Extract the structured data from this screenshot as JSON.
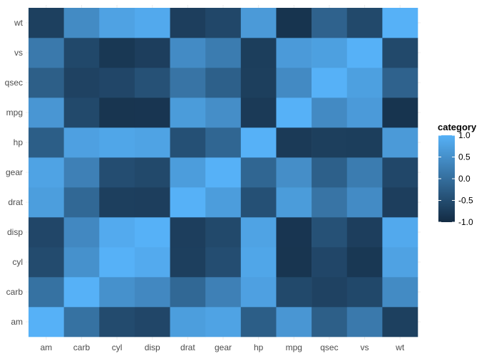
{
  "chart_data": {
    "type": "heatmap",
    "x_categories": [
      "am",
      "carb",
      "cyl",
      "disp",
      "drat",
      "gear",
      "hp",
      "mpg",
      "qsec",
      "vs",
      "wt"
    ],
    "y_categories": [
      "am",
      "carb",
      "cyl",
      "disp",
      "drat",
      "gear",
      "hp",
      "mpg",
      "qsec",
      "vs",
      "wt"
    ],
    "values": [
      [
        1.0,
        0.058,
        -0.523,
        -0.591,
        0.713,
        0.794,
        -0.243,
        0.6,
        -0.23,
        0.168,
        -0.692
      ],
      [
        0.058,
        1.0,
        0.527,
        0.395,
        -0.091,
        0.274,
        0.75,
        -0.551,
        -0.656,
        -0.57,
        0.428
      ],
      [
        -0.523,
        0.527,
        1.0,
        0.902,
        -0.7,
        -0.493,
        0.832,
        -0.852,
        -0.591,
        -0.811,
        0.782
      ],
      [
        -0.591,
        0.395,
        0.902,
        1.0,
        -0.71,
        -0.556,
        0.791,
        -0.848,
        -0.434,
        -0.71,
        0.888
      ],
      [
        0.713,
        -0.091,
        -0.7,
        -0.71,
        1.0,
        0.7,
        -0.449,
        0.681,
        0.091,
        0.44,
        -0.712
      ],
      [
        0.794,
        0.274,
        -0.493,
        -0.556,
        0.7,
        1.0,
        -0.126,
        0.48,
        -0.213,
        0.206,
        -0.583
      ],
      [
        -0.243,
        0.75,
        0.832,
        0.791,
        -0.449,
        -0.126,
        1.0,
        -0.776,
        -0.708,
        -0.723,
        0.659
      ],
      [
        0.6,
        -0.551,
        -0.852,
        -0.848,
        0.681,
        0.48,
        -0.776,
        1.0,
        0.419,
        0.664,
        -0.868
      ],
      [
        -0.23,
        -0.656,
        -0.591,
        -0.434,
        0.091,
        -0.213,
        -0.708,
        0.419,
        1.0,
        0.745,
        -0.175
      ],
      [
        0.168,
        -0.57,
        -0.811,
        -0.71,
        0.44,
        0.206,
        -0.723,
        0.664,
        0.745,
        1.0,
        -0.555
      ],
      [
        -0.692,
        0.428,
        0.782,
        0.888,
        -0.712,
        -0.583,
        0.659,
        -0.868,
        -0.175,
        -0.555,
        1.0
      ]
    ],
    "color_range": [
      -1,
      1
    ],
    "colors": {
      "low": "#132B43",
      "high": "#56B1F7"
    },
    "legend": {
      "title": "category",
      "position": "right",
      "ticks": [
        1.0,
        0.5,
        0.0,
        -0.5,
        -1.0
      ],
      "tick_labels": [
        "1.0",
        "0.5",
        "0.0",
        "-0.5",
        "-1.0"
      ]
    },
    "grid": true
  }
}
